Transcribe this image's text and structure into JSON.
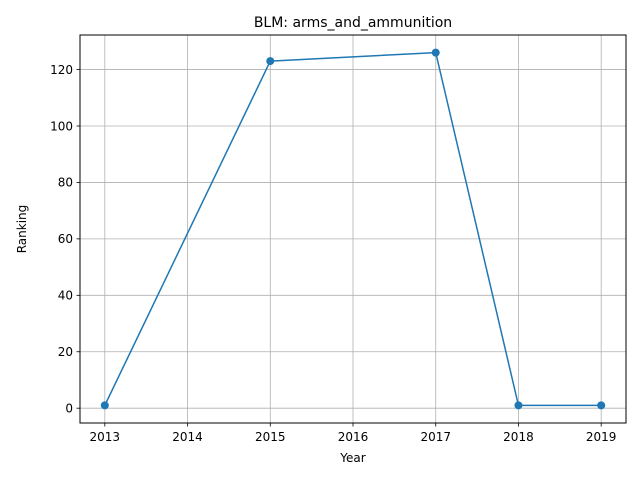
{
  "chart_data": {
    "type": "line",
    "title": "BLM: arms_and_ammunition",
    "xlabel": "Year",
    "ylabel": "Ranking",
    "x": [
      2013,
      2015,
      2017,
      2018,
      2019
    ],
    "series": [
      {
        "values": [
          1,
          123,
          126,
          1,
          1
        ]
      }
    ],
    "xticks": [
      "2013",
      "2014",
      "2015",
      "2016",
      "2017",
      "2018",
      "2019"
    ],
    "yticks": [
      "0",
      "20",
      "40",
      "60",
      "80",
      "100",
      "120"
    ],
    "xlim": [
      2012.7,
      2019.3
    ],
    "ylim": [
      -5.25,
      132.25
    ],
    "grid": true,
    "line_color": "#1f77b4",
    "marker": "circle"
  }
}
